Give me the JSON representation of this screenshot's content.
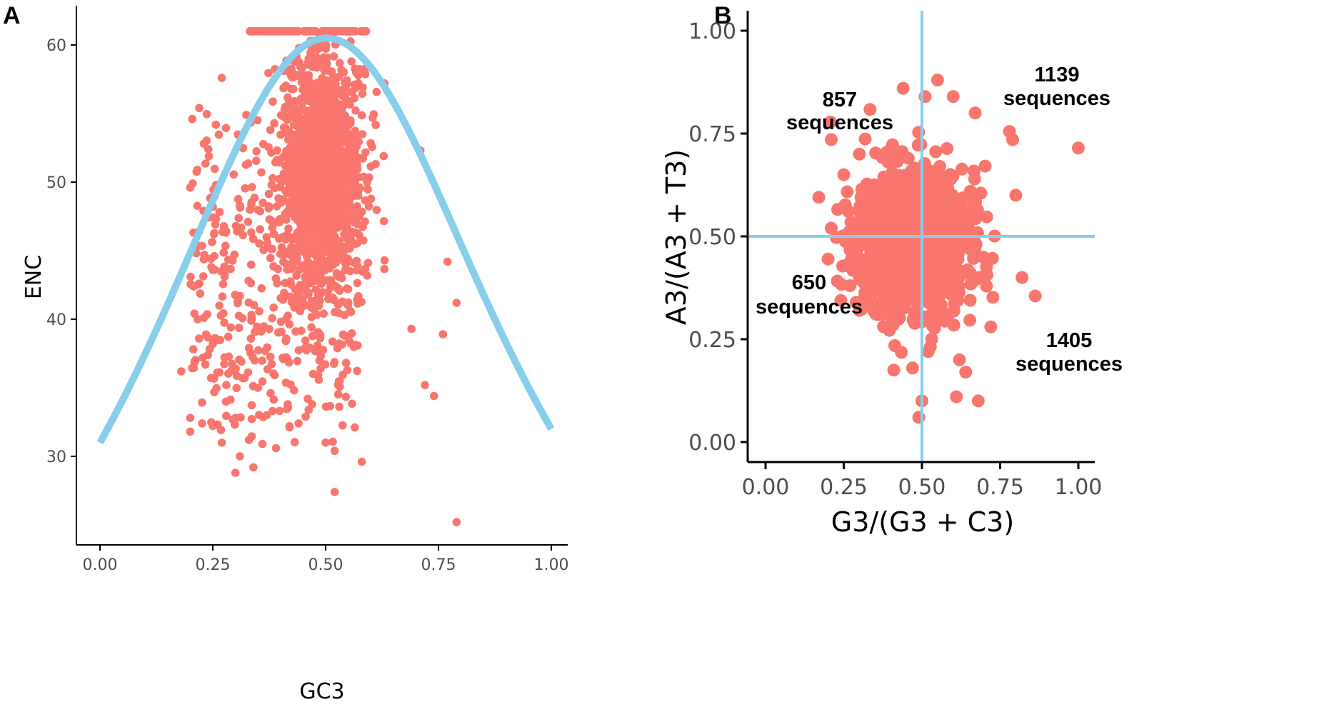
{
  "colors": {
    "points": "#f8766d",
    "reference": "#87ceeb",
    "axis": "#000000",
    "tick_text": "#4d4d4d"
  },
  "chart_data": [
    {
      "panel": "A",
      "type": "scatter",
      "xlabel": "GC3",
      "ylabel": "ENC",
      "xlim": [
        -0.05,
        1.01
      ],
      "ylim": [
        23.2,
        63.2
      ],
      "x_ticks": [
        0,
        0.25,
        0.5,
        0.75,
        1
      ],
      "x_tick_labels": [
        "0.00",
        "0.25",
        "0.50",
        "0.75",
        "1.00"
      ],
      "y_ticks": [
        30,
        40,
        50,
        60
      ],
      "y_tick_labels": [
        "30",
        "40",
        "50",
        "60"
      ],
      "cap_value": 61,
      "reference_curve": "ENC = 2 + s + 29 / (s^2 + (1 - s)^2)",
      "point_sample": [
        [
          0.52,
          27.4
        ],
        [
          0.79,
          25.2
        ],
        [
          0.58,
          29.6
        ],
        [
          0.3,
          28.8
        ],
        [
          0.34,
          29.2
        ],
        [
          0.2,
          31.8
        ],
        [
          0.2,
          32.8
        ],
        [
          0.18,
          36.2
        ],
        [
          0.72,
          35.2
        ],
        [
          0.74,
          34.4
        ],
        [
          0.76,
          38.9
        ],
        [
          0.79,
          41.2
        ],
        [
          0.77,
          44.2
        ],
        [
          0.69,
          39.3
        ],
        [
          0.24,
          52.4
        ],
        [
          0.22,
          55.4
        ],
        [
          0.71,
          52.3
        ],
        [
          0.2,
          49.6
        ],
        [
          0.23,
          52.8
        ],
        [
          0.27,
          57.6
        ],
        [
          0.63,
          57.2
        ],
        [
          0.31,
          30.0
        ],
        [
          0.39,
          30.6
        ],
        [
          0.42,
          32.2
        ],
        [
          0.52,
          30.4
        ],
        [
          0.27,
          31.0
        ],
        [
          0.33,
          31.2
        ],
        [
          0.47,
          33.8
        ],
        [
          0.44,
          32.4
        ],
        [
          0.5,
          31.0
        ],
        [
          0.36,
          30.9
        ],
        [
          0.25,
          43.6
        ],
        [
          0.21,
          45.3
        ],
        [
          0.22,
          42.6
        ],
        [
          0.23,
          40.1
        ],
        [
          0.25,
          38.2
        ],
        [
          0.26,
          36.1
        ],
        [
          0.28,
          35.2
        ],
        [
          0.29,
          39.4
        ],
        [
          0.31,
          41.7
        ],
        [
          0.33,
          37.9
        ],
        [
          0.35,
          35.0
        ]
      ],
      "point_cloud": {
        "center": [
          0.49,
          50.5
        ],
        "spread": [
          0.045,
          4.5
        ]
      }
    },
    {
      "panel": "B",
      "type": "scatter",
      "xlabel": "G3/(G3 + C3)",
      "ylabel": "A3/(A3 + T3)",
      "xlim": [
        -0.05,
        1.05
      ],
      "ylim": [
        -0.05,
        1.05
      ],
      "x_ticks": [
        0,
        0.25,
        0.5,
        0.75,
        1
      ],
      "x_tick_labels": [
        "0.00",
        "0.25",
        "0.50",
        "0.75",
        "1.00"
      ],
      "y_ticks": [
        0,
        0.25,
        0.5,
        0.75,
        1
      ],
      "y_tick_labels": [
        "0.00",
        "0.25",
        "0.50",
        "0.75",
        "1.00"
      ],
      "reference_lines": {
        "x": 0.5,
        "y": 0.5
      },
      "quadrant_counts": [
        {
          "quadrant": "upper-left",
          "count": "857",
          "unit": "sequences"
        },
        {
          "quadrant": "upper-right",
          "count": "1139",
          "unit": "sequences"
        },
        {
          "quadrant": "lower-left",
          "count": "650",
          "unit": "sequences"
        },
        {
          "quadrant": "lower-right",
          "count": "1405",
          "unit": "sequences"
        }
      ],
      "point_sample": [
        [
          1.0,
          0.715
        ],
        [
          0.17,
          0.595
        ],
        [
          0.21,
          0.735
        ],
        [
          0.2,
          0.445
        ],
        [
          0.21,
          0.52
        ],
        [
          0.41,
          0.175
        ],
        [
          0.49,
          0.06
        ],
        [
          0.5,
          0.1
        ],
        [
          0.61,
          0.11
        ],
        [
          0.68,
          0.1
        ],
        [
          0.64,
          0.17
        ],
        [
          0.82,
          0.4
        ],
        [
          0.79,
          0.735
        ],
        [
          0.78,
          0.755
        ],
        [
          0.8,
          0.6
        ],
        [
          0.55,
          0.88
        ],
        [
          0.44,
          0.86
        ],
        [
          0.51,
          0.84
        ],
        [
          0.6,
          0.84
        ],
        [
          0.67,
          0.8
        ],
        [
          0.47,
          0.18
        ],
        [
          0.52,
          0.22
        ],
        [
          0.62,
          0.2
        ],
        [
          0.72,
          0.28
        ],
        [
          0.3,
          0.32
        ],
        [
          0.27,
          0.38
        ],
        [
          0.25,
          0.65
        ],
        [
          0.3,
          0.7
        ]
      ],
      "point_cloud": {
        "center": [
          0.47,
          0.49
        ],
        "spread": [
          0.085,
          0.085
        ]
      }
    }
  ],
  "labels": {
    "panel_a": "A",
    "panel_b": "B",
    "a_xlabel": "GC3",
    "a_ylabel": "ENC",
    "b_xlabel": "G3/(G3 + C3)",
    "b_ylabel": "A3/(A3 + T3)"
  }
}
